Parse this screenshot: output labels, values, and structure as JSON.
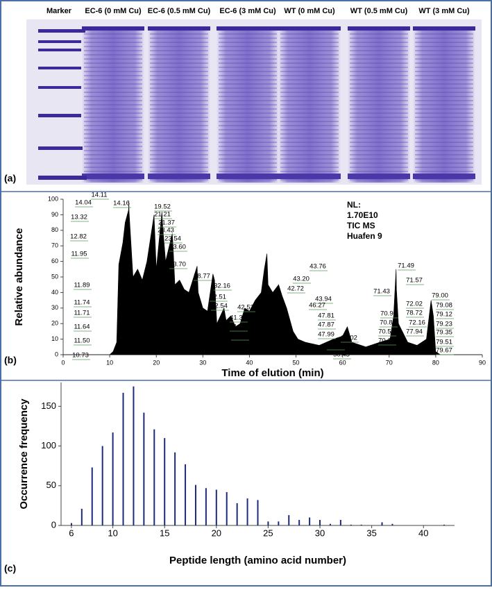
{
  "gel": {
    "label": "(a)",
    "lanes": [
      "Marker",
      "EC-6 (0 mM Cu)",
      "EC-6 (0.5 mM Cu)",
      "EC-6 (3 mM Cu)",
      "WT (0 mM Cu)",
      "WT (0.5 mM Cu)",
      "WT (3 mM Cu)"
    ]
  },
  "chart_data": [
    {
      "type": "area",
      "panel": "(b)",
      "xlabel": "Time of elution (min)",
      "ylabel": "Relative abundance",
      "color": "#000000",
      "note": [
        "NL:",
        "1.70E10",
        "TIC MS",
        "Huafen 9"
      ],
      "x": [
        0,
        10,
        10.73,
        11.5,
        11.95,
        12.82,
        13.32,
        14.04,
        14.11,
        14.16,
        15,
        16,
        17,
        18,
        19.52,
        20,
        21.21,
        21.37,
        22,
        23.43,
        23.54,
        23.6,
        24,
        25,
        26,
        27,
        28.77,
        29,
        30,
        31,
        32.16,
        32.51,
        33,
        34.54,
        35,
        36,
        37,
        38,
        39,
        40,
        41.25,
        42.53,
        43.2,
        43.76,
        44,
        45,
        46.27,
        47,
        47.99,
        49.38,
        50.43,
        52,
        55,
        58,
        60,
        61.02,
        62,
        65,
        68,
        70.19,
        70.96,
        71.49,
        71.57,
        72,
        74,
        76,
        78,
        79,
        79.5,
        80,
        81,
        90
      ],
      "values": [
        0,
        0,
        2,
        8,
        58,
        72,
        85,
        93,
        99,
        92,
        50,
        55,
        48,
        60,
        90,
        55,
        92,
        83,
        60,
        78,
        73,
        70,
        45,
        48,
        42,
        40,
        57,
        40,
        30,
        28,
        52,
        48,
        20,
        30,
        22,
        25,
        18,
        20,
        30,
        28,
        35,
        40,
        55,
        65,
        45,
        40,
        45,
        38,
        30,
        15,
        10,
        8,
        6,
        10,
        12,
        18,
        8,
        5,
        8,
        10,
        25,
        55,
        42,
        20,
        8,
        6,
        10,
        35,
        25,
        2,
        0,
        0
      ],
      "annotations": [
        "14.11",
        "14.04",
        "14.16",
        "19.52",
        "21.21",
        "21.37",
        "13.32",
        "23.43",
        "23.54",
        "23.60",
        "12.82",
        "11.95",
        "23.70",
        "28.77",
        "32.16",
        "32.51",
        "32.54",
        "43.20",
        "43.76",
        "42.72",
        "11.89",
        "11.74",
        "11.71",
        "11.64",
        "11.50",
        "10.73",
        "42.53",
        "41.32",
        "41.25",
        "34.54",
        "43.94",
        "46.27",
        "47.81",
        "47.87",
        "47.99",
        "49.38",
        "50.43",
        "61.02",
        "71.49",
        "71.57",
        "71.43",
        "72.02",
        "79.00",
        "79.08",
        "79.12",
        "78.72",
        "70.96",
        "70.83",
        "72.16",
        "79.23",
        "70.57",
        "77.94",
        "79.35",
        "70.19",
        "79.51",
        "79.67"
      ],
      "xlim": [
        0,
        90
      ],
      "xticks": [
        0,
        10,
        20,
        30,
        40,
        50,
        60,
        70,
        80,
        90
      ],
      "ylim": [
        0,
        100
      ],
      "yticks": [
        0,
        10,
        20,
        30,
        40,
        50,
        60,
        70,
        80,
        90,
        100
      ]
    },
    {
      "type": "bar",
      "panel": "(c)",
      "xlabel": "Peptide length (amino acid number)",
      "ylabel": "Occurrence frequency",
      "color": "#1c2a7a",
      "x": [
        6,
        7,
        8,
        9,
        10,
        11,
        12,
        13,
        14,
        15,
        16,
        17,
        18,
        19,
        20,
        21,
        22,
        23,
        24,
        25,
        26,
        27,
        28,
        29,
        30,
        31,
        32,
        33,
        34,
        36,
        37,
        42
      ],
      "values": [
        3,
        21,
        73,
        100,
        117,
        167,
        175,
        142,
        121,
        110,
        92,
        77,
        51,
        47,
        45,
        42,
        28,
        34,
        32,
        5,
        5,
        13,
        7,
        10,
        7,
        2,
        7,
        1,
        1,
        4,
        2,
        1
      ],
      "xlim": [
        5,
        43
      ],
      "xticks": [
        6,
        10,
        15,
        20,
        25,
        30,
        35,
        40
      ],
      "ylim": [
        0,
        180
      ],
      "yticks": [
        0,
        50,
        100,
        150
      ]
    }
  ]
}
